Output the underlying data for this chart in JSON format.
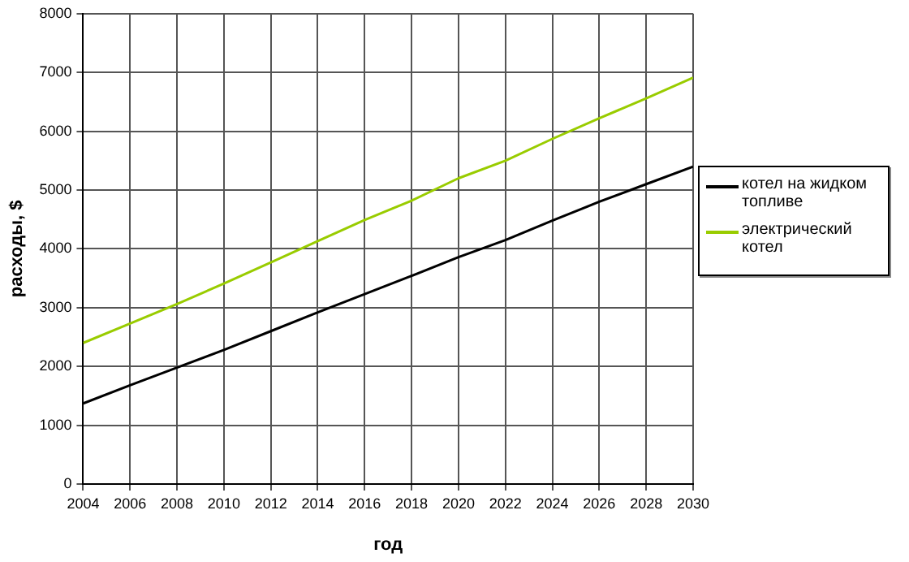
{
  "chart_data": {
    "type": "line",
    "xlabel": "год",
    "ylabel": "расходы, $",
    "x": [
      2004,
      2006,
      2008,
      2010,
      2012,
      2014,
      2016,
      2018,
      2020,
      2022,
      2024,
      2026,
      2028,
      2030
    ],
    "series": [
      {
        "name": "котел на жидком топливе",
        "color": "#000000",
        "values": [
          1370,
          1680,
          1980,
          2280,
          2600,
          2920,
          3230,
          3540,
          3860,
          4150,
          4480,
          4800,
          5100,
          5400
        ]
      },
      {
        "name": "электрический котел",
        "color": "#99cc00",
        "values": [
          2400,
          2730,
          3060,
          3410,
          3770,
          4130,
          4490,
          4820,
          5200,
          5500,
          5870,
          6220,
          6560,
          6910
        ]
      }
    ],
    "xlim": [
      2004,
      2030
    ],
    "xticks": [
      2004,
      2006,
      2008,
      2010,
      2012,
      2014,
      2016,
      2018,
      2020,
      2022,
      2024,
      2026,
      2028,
      2030
    ],
    "ylim": [
      0,
      8000
    ],
    "yticks": [
      0,
      1000,
      2000,
      3000,
      4000,
      5000,
      6000,
      7000,
      8000
    ],
    "grid": true,
    "legend": "right",
    "marker": "none",
    "line_style": "solid"
  }
}
